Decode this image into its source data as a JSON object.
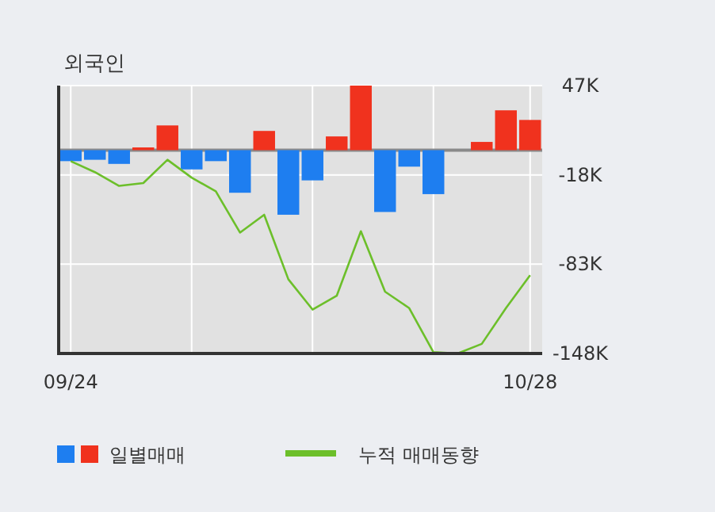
{
  "chart_data": {
    "type": "bar",
    "title": "외국인",
    "categories": [
      "09/24",
      null,
      null,
      null,
      null,
      null,
      null,
      null,
      null,
      null,
      null,
      null,
      null,
      null,
      null,
      null,
      null,
      null,
      null,
      "10/28"
    ],
    "series": [
      {
        "name": "일별매매",
        "colors": [
          "#1e7ef0",
          "#1e7ef0",
          "#1e7ef0",
          "#f0321e",
          "#f0321e",
          "#1e7ef0",
          "#1e7ef0",
          "#1e7ef0",
          "#f0321e",
          "#1e7ef0",
          "#1e7ef0",
          "#f0321e",
          "#f0321e",
          "#1e7ef0",
          "#1e7ef0",
          "#1e7ef0",
          "#f0321e",
          "#f0321e",
          "#f0321e",
          "#f0321e"
        ],
        "values": [
          -8,
          -7,
          -10,
          2,
          18,
          -14,
          -8,
          -31,
          14,
          -47,
          -22,
          10,
          47,
          -45,
          -12,
          -32,
          0,
          6,
          29,
          22
        ]
      },
      {
        "name": "누적 매매동향",
        "type": "line",
        "color": "#6cbf2a",
        "values": [
          -8,
          -16,
          -26,
          -24,
          -7,
          -20,
          -30,
          -60,
          -47,
          -94,
          -116,
          -106,
          -59,
          -103,
          -115,
          -147,
          -148,
          -141,
          -115,
          -91
        ]
      }
    ],
    "ylim": [
      -148,
      47
    ],
    "yticks": [
      {
        "value": 47,
        "label": "47K"
      },
      {
        "value": -18,
        "label": "-18K"
      },
      {
        "value": -83,
        "label": "-83K"
      },
      {
        "value": -148,
        "label": "-148K"
      }
    ],
    "grid": true,
    "legend": "bottom",
    "marker": "none",
    "line_style": "solid"
  }
}
